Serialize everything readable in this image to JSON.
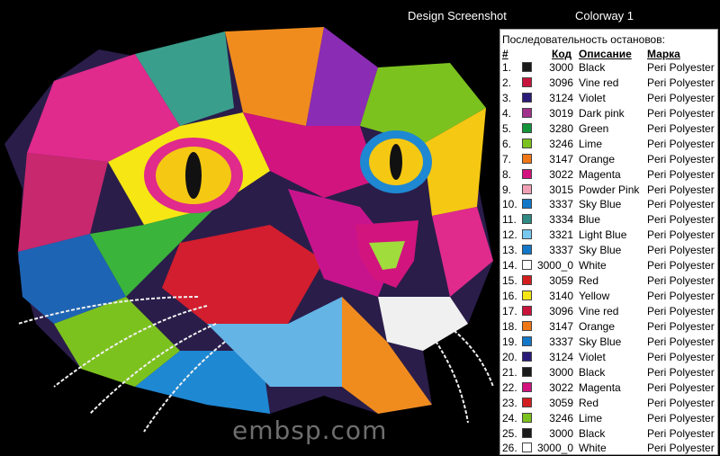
{
  "header": {
    "design_label": "Design Screenshot",
    "colorway_label": "Colorway 1"
  },
  "watermark": "embsp.com",
  "stops_panel": {
    "title": "Последовательность остановов:",
    "columns": {
      "num": "#",
      "code": "Код",
      "description": "Описание",
      "brand": "Марка"
    },
    "rows": [
      {
        "num": "1.",
        "color": "#1a1a1a",
        "code": "3000",
        "description": "Black",
        "brand": "Peri Polyester"
      },
      {
        "num": "2.",
        "color": "#c8143c",
        "code": "3096",
        "description": "Vine red",
        "brand": "Peri Polyester"
      },
      {
        "num": "3.",
        "color": "#2b1a78",
        "code": "3124",
        "description": "Violet",
        "brand": "Peri Polyester"
      },
      {
        "num": "4.",
        "color": "#a0328c",
        "code": "3019",
        "description": "Dark pink",
        "brand": "Peri Polyester"
      },
      {
        "num": "5.",
        "color": "#13953a",
        "code": "3280",
        "description": "Green",
        "brand": "Peri Polyester"
      },
      {
        "num": "6.",
        "color": "#7cc21e",
        "code": "3246",
        "description": "Lime",
        "brand": "Peri Polyester"
      },
      {
        "num": "7.",
        "color": "#f07814",
        "code": "3147",
        "description": "Orange",
        "brand": "Peri Polyester"
      },
      {
        "num": "8.",
        "color": "#d2127e",
        "code": "3022",
        "description": "Magenta",
        "brand": "Peri Polyester"
      },
      {
        "num": "9.",
        "color": "#f0a0b4",
        "code": "3015",
        "description": "Powder Pink",
        "brand": "Peri Polyester"
      },
      {
        "num": "10.",
        "color": "#1478c8",
        "code": "3337",
        "description": "Sky Blue",
        "brand": "Peri Polyester"
      },
      {
        "num": "11.",
        "color": "#2e8a82",
        "code": "3334",
        "description": "Blue",
        "brand": "Peri Polyester"
      },
      {
        "num": "12.",
        "color": "#78c8f0",
        "code": "3321",
        "description": "Light Blue",
        "brand": "Peri Polyester"
      },
      {
        "num": "13.",
        "color": "#1478c8",
        "code": "3337",
        "description": "Sky Blue",
        "brand": "Peri Polyester"
      },
      {
        "num": "14.",
        "color": "#ffffff",
        "code": "3000_0",
        "description": "White",
        "brand": "Peri Polyester"
      },
      {
        "num": "15.",
        "color": "#d21e1e",
        "code": "3059",
        "description": "Red",
        "brand": "Peri Polyester"
      },
      {
        "num": "16.",
        "color": "#f5e614",
        "code": "3140",
        "description": "Yellow",
        "brand": "Peri Polyester"
      },
      {
        "num": "17.",
        "color": "#c8143c",
        "code": "3096",
        "description": "Vine red",
        "brand": "Peri Polyester"
      },
      {
        "num": "18.",
        "color": "#f07814",
        "code": "3147",
        "description": "Orange",
        "brand": "Peri Polyester"
      },
      {
        "num": "19.",
        "color": "#1478c8",
        "code": "3337",
        "description": "Sky Blue",
        "brand": "Peri Polyester"
      },
      {
        "num": "20.",
        "color": "#2b1a78",
        "code": "3124",
        "description": "Violet",
        "brand": "Peri Polyester"
      },
      {
        "num": "21.",
        "color": "#1a1a1a",
        "code": "3000",
        "description": "Black",
        "brand": "Peri Polyester"
      },
      {
        "num": "22.",
        "color": "#d2127e",
        "code": "3022",
        "description": "Magenta",
        "brand": "Peri Polyester"
      },
      {
        "num": "23.",
        "color": "#d21e1e",
        "code": "3059",
        "description": "Red",
        "brand": "Peri Polyester"
      },
      {
        "num": "24.",
        "color": "#7cc21e",
        "code": "3246",
        "description": "Lime",
        "brand": "Peri Polyester"
      },
      {
        "num": "25.",
        "color": "#1a1a1a",
        "code": "3000",
        "description": "Black",
        "brand": "Peri Polyester"
      },
      {
        "num": "26.",
        "color": "#ffffff",
        "code": "3000_0",
        "description": "White",
        "brand": "Peri Polyester"
      }
    ]
  }
}
